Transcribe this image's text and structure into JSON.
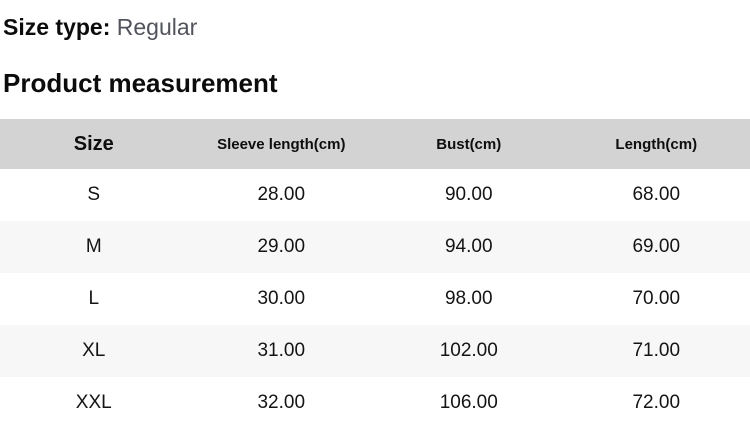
{
  "page": {
    "size_type_label": "Size type:",
    "size_type_value": "Regular",
    "section_title": "Product measurement"
  },
  "table": {
    "columns": [
      "Size",
      "Sleeve length(cm)",
      "Bust(cm)",
      "Length(cm)"
    ],
    "rows": [
      [
        "S",
        "28.00",
        "90.00",
        "68.00"
      ],
      [
        "M",
        "29.00",
        "94.00",
        "69.00"
      ],
      [
        "L",
        "30.00",
        "98.00",
        "70.00"
      ],
      [
        "XL",
        "31.00",
        "102.00",
        "71.00"
      ],
      [
        "XXL",
        "32.00",
        "106.00",
        "72.00"
      ]
    ],
    "colors": {
      "header_bg": "#d3d3d3",
      "alt_row_bg": "#f7f7f7",
      "heading_text": "#0c0c0c",
      "muted_text": "#52545c",
      "cell_text": "#141414"
    }
  }
}
